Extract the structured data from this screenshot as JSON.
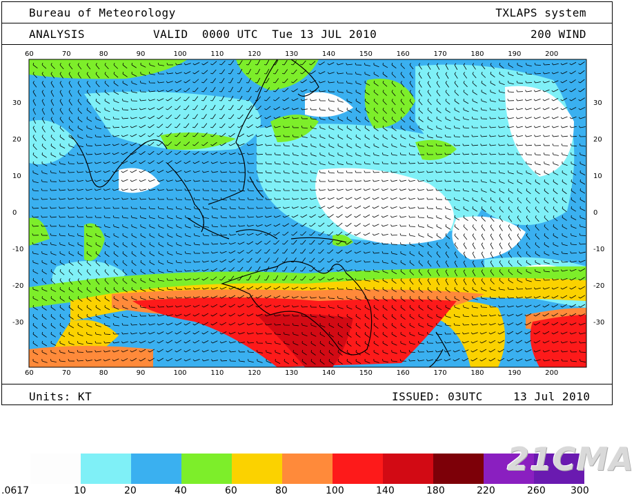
{
  "header": {
    "agency": "Bureau of Meteorology",
    "system": "TXLAPS system",
    "analysis": "ANALYSIS",
    "valid": "VALID  0000 UTC  Tue 13 JUL 2010",
    "field": "200 WIND"
  },
  "footer": {
    "units": "Units: KT",
    "issued": "ISSUED: 03UTC",
    "date": "13 Jul 2010"
  },
  "map": {
    "lon_ticks": [
      "60",
      "70",
      "80",
      "90",
      "100",
      "110",
      "120",
      "130",
      "140",
      "150",
      "160",
      "170",
      "180",
      "190",
      "200"
    ],
    "lat_ticks": [
      "30",
      "20",
      "10",
      "0",
      "-10",
      "-20",
      "-30"
    ],
    "lon_range": [
      60,
      210
    ],
    "lat_range": [
      -42,
      42
    ]
  },
  "legend": {
    "labels": [
      ".0617",
      "10",
      "20",
      "40",
      "60",
      "80",
      "100",
      "140",
      "180",
      "220",
      "260",
      "300"
    ],
    "colors": [
      "#fdfdfd",
      "#7ff0f7",
      "#3ab0f0",
      "#7dee2a",
      "#fbd200",
      "#ff8a3a",
      "#fd1a1a",
      "#d20a14",
      "#7d0008",
      "#8a1fc0",
      "#6a1ab0"
    ]
  },
  "watermark": "21CMA"
}
